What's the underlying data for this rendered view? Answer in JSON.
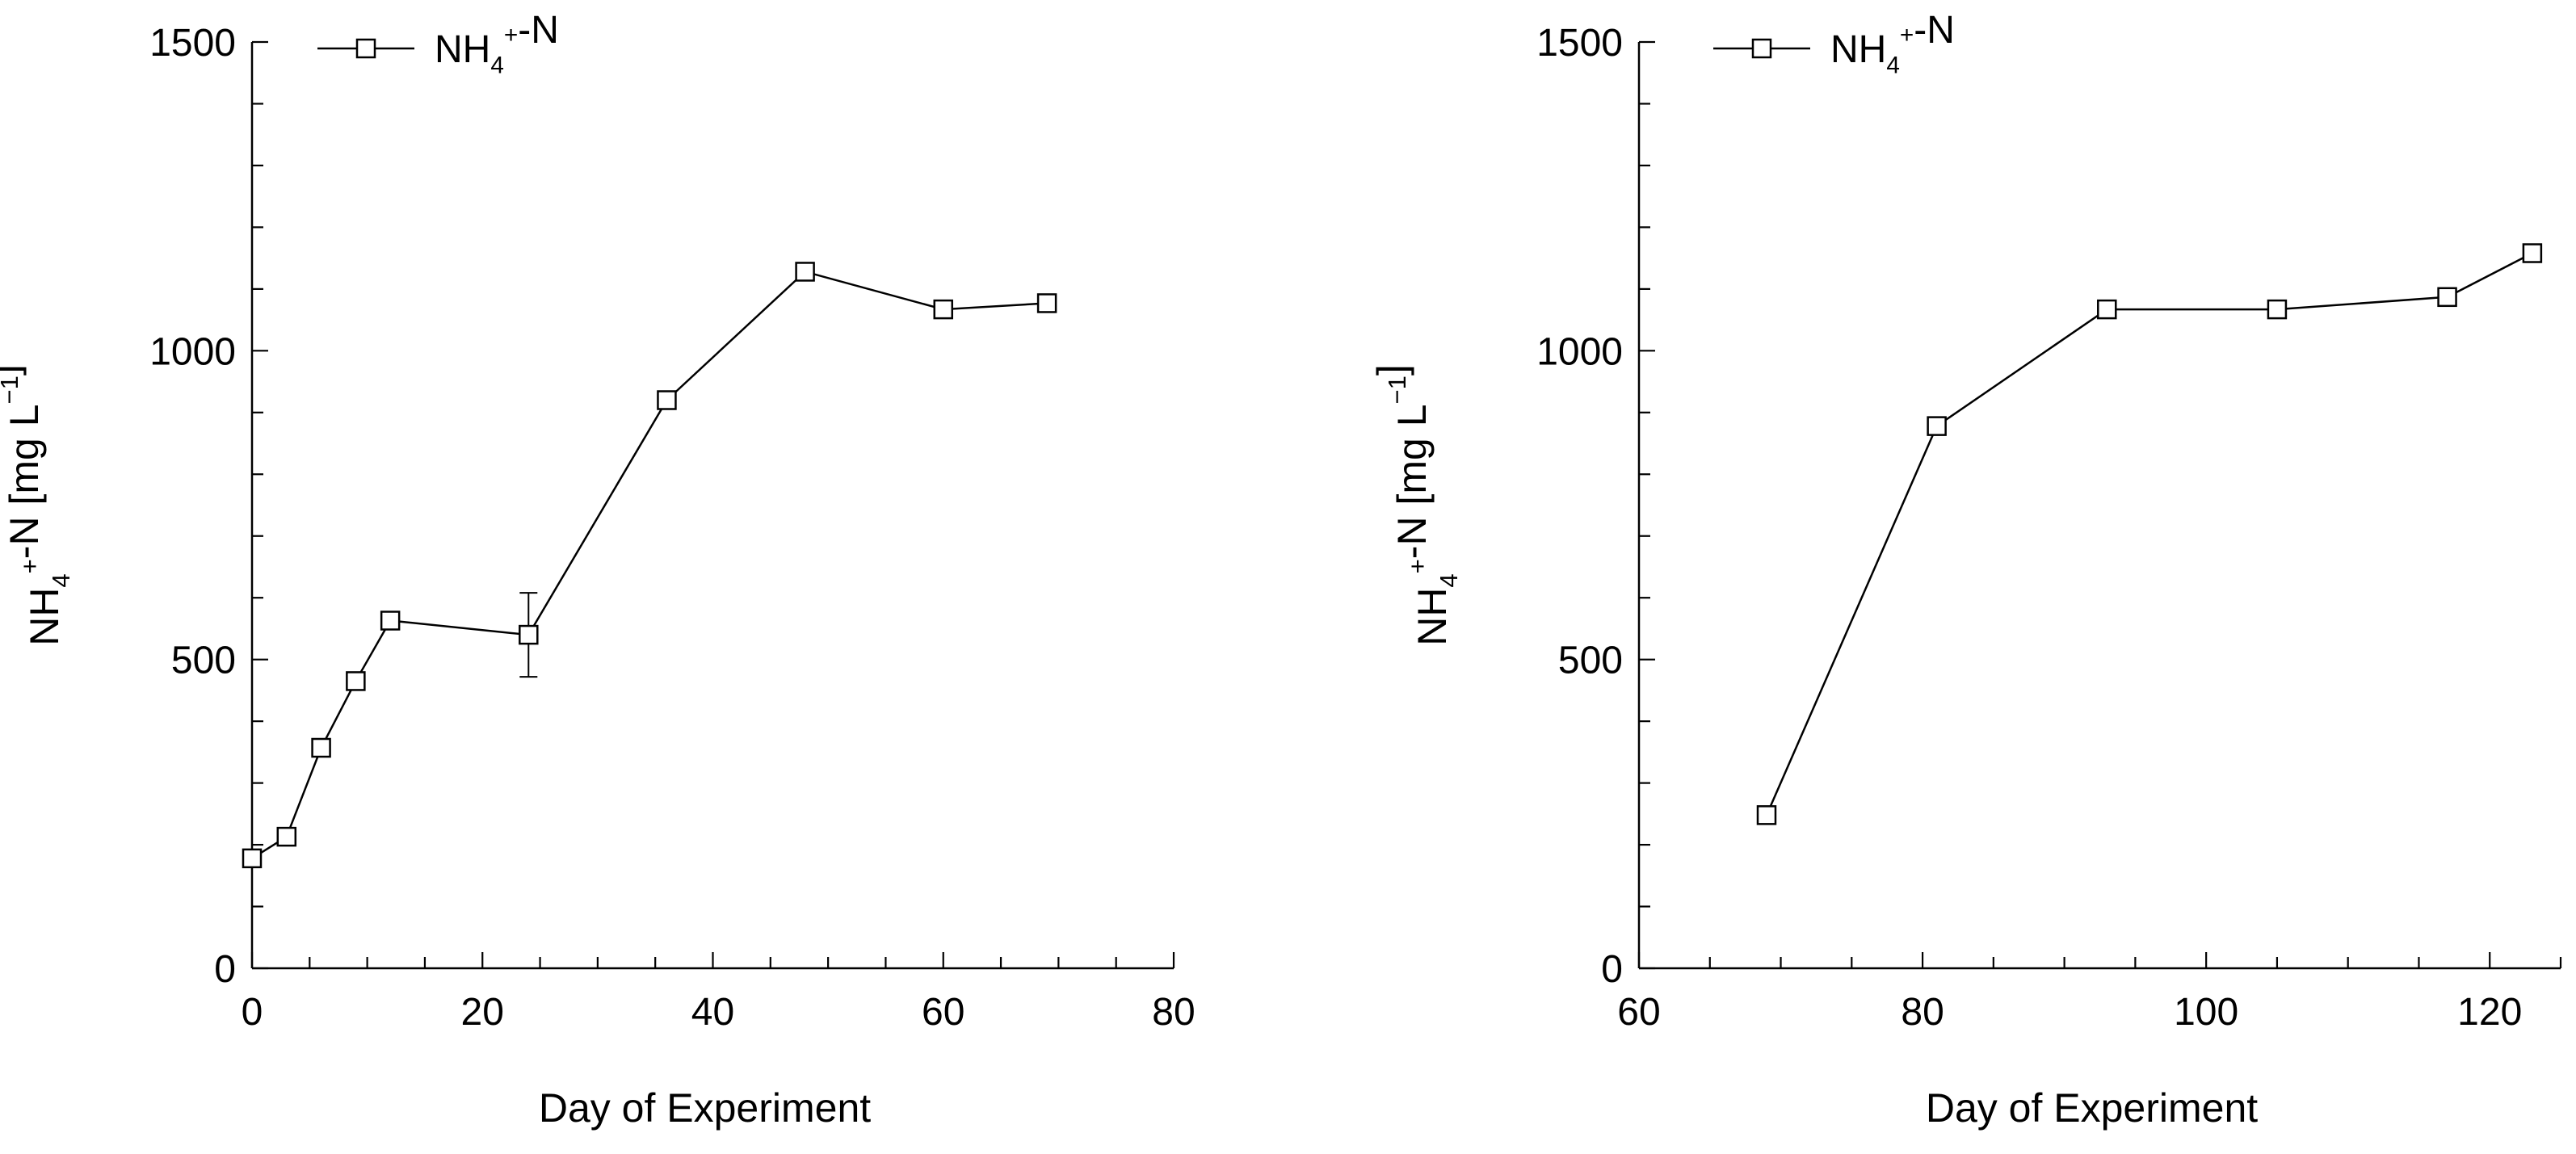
{
  "chart_data": [
    {
      "type": "line",
      "xlabel": "Day of Experiment",
      "ylabel": "NH4+-N [mg L−1]",
      "xlim": [
        0,
        80
      ],
      "ylim": [
        0,
        1500
      ],
      "xticks": [
        0,
        20,
        40,
        60,
        80
      ],
      "yticks": [
        0,
        500,
        1000,
        1500
      ],
      "legend_position": "top-left",
      "grid": false,
      "series": [
        {
          "name": "NH4+-N",
          "marker": "open-square",
          "x": [
            0,
            3,
            6,
            9,
            12,
            24,
            36,
            48,
            60,
            69
          ],
          "y": [
            178,
            213,
            357,
            465,
            563,
            540,
            920,
            1128,
            1067,
            1077
          ],
          "error": [
            0,
            0,
            0,
            0,
            0,
            68,
            0,
            0,
            0,
            0
          ]
        }
      ]
    },
    {
      "type": "line",
      "xlabel": "Day of Experiment",
      "ylabel": "NH4+-N [mg L−1]",
      "xlim": [
        60,
        125
      ],
      "ylim": [
        0,
        1500
      ],
      "xticks": [
        60,
        80,
        100,
        120
      ],
      "yticks": [
        0,
        500,
        1000,
        1500
      ],
      "legend_position": "top-left",
      "grid": false,
      "series": [
        {
          "name": "NH4+-N",
          "marker": "open-square",
          "x": [
            69,
            81,
            93,
            105,
            117,
            123
          ],
          "y": [
            248,
            878,
            1067,
            1067,
            1087,
            1158
          ],
          "error": [
            0,
            0,
            0,
            0,
            0,
            0
          ]
        }
      ]
    }
  ]
}
